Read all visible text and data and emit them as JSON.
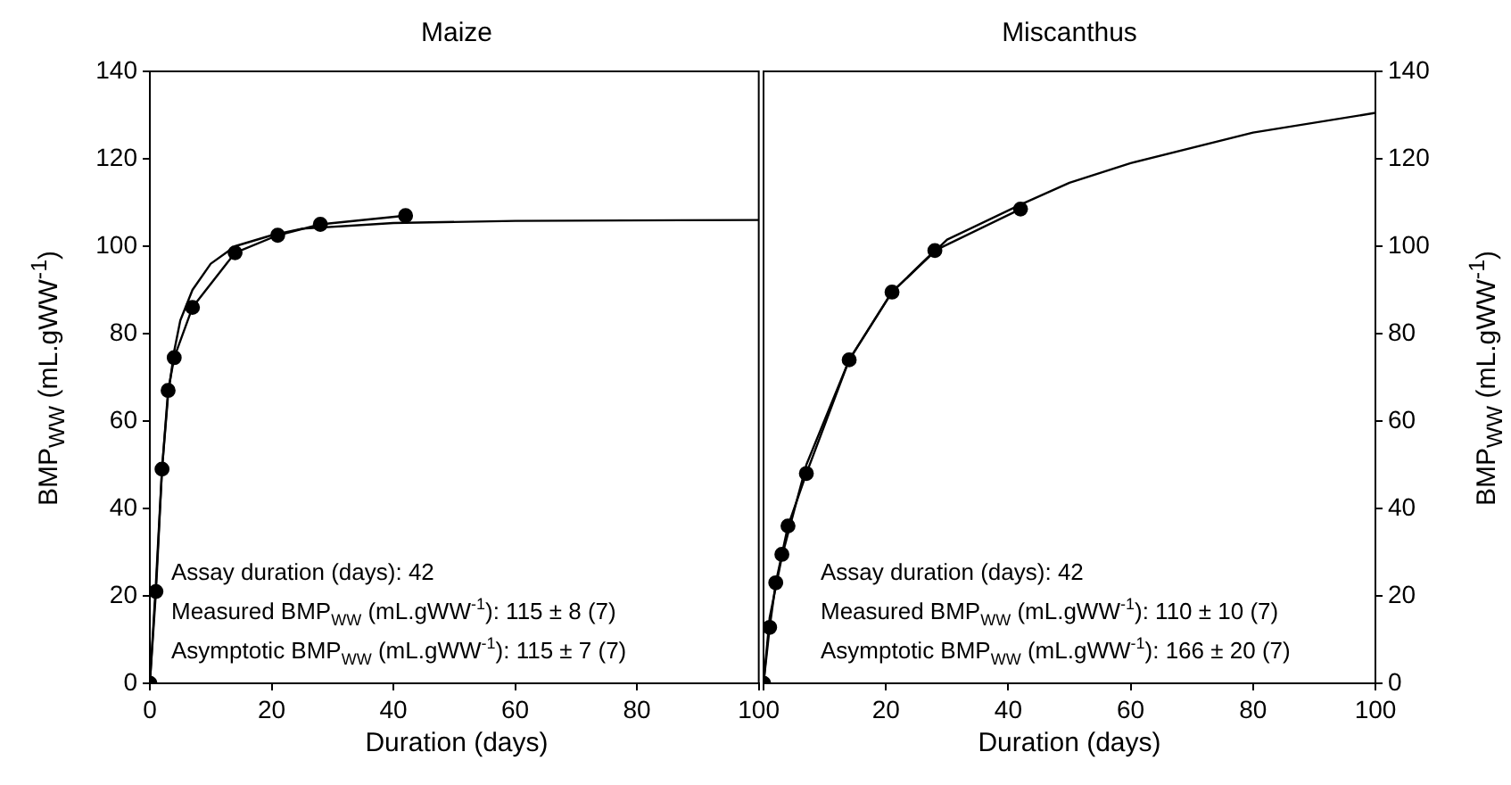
{
  "chart_data": [
    {
      "type": "line",
      "title": "Maize",
      "xlabel": "Duration (days)",
      "ylabel": "BMP$_{WW}$ (mL.gWW$^{-1}$)",
      "xlim": [
        0,
        100
      ],
      "xticks": [
        0,
        20,
        40,
        60,
        80,
        100
      ],
      "ylim": [
        0,
        140
      ],
      "yticks": [
        0,
        20,
        40,
        60,
        80,
        100,
        120,
        140
      ],
      "legend": false,
      "grid": false,
      "annotations": [
        "Assay duration (days): 42",
        "Measured BMP$_{WW}$ (mL.gWW$^{-1}$): 115 ± 8 (7)",
        "Asymptotic BMP$_{WW}$ (mL.gWW$^{-1}$): 115 ± 7 (7)"
      ],
      "series": [
        {
          "color": "#000000",
          "marker": "circle",
          "x": [
            0,
            1,
            2,
            3,
            4,
            7,
            14,
            21,
            28,
            42
          ],
          "values": [
            0,
            21,
            49,
            67,
            74.5,
            86,
            98.5,
            102.5,
            105,
            107
          ]
        },
        {
          "color": "#000000",
          "marker": "none",
          "x": [
            0,
            1,
            2,
            3,
            4,
            5,
            7,
            10,
            14,
            20,
            25,
            40,
            60,
            100
          ],
          "values": [
            0,
            23,
            49,
            66,
            76,
            83,
            90,
            96,
            100,
            102.5,
            104,
            105.3,
            105.8,
            106
          ]
        }
      ]
    },
    {
      "type": "line",
      "title": "Miscanthus",
      "xlabel": "Duration (days)",
      "y2label": "BMP$_{WW}$ (mL.gWW$^{-1}$)",
      "xlim": [
        0,
        100
      ],
      "xticks": [
        {
          "value": 0,
          "label": null
        },
        20,
        40,
        60,
        80,
        100
      ],
      "y2lim": [
        0,
        140
      ],
      "y2ticks": [
        0,
        20,
        40,
        60,
        80,
        100,
        120,
        140
      ],
      "legend": false,
      "grid": false,
      "annotations": [
        "Assay duration (days): 42",
        "Measured BMP$_{WW}$ (mL.gWW$^{-1}$): 110 ± 10 (7)",
        "Asymptotic BMP$_{WW}$ (mL.gWW$^{-1}$): 166 ± 20 (7)"
      ],
      "series": [
        {
          "color": "#000000",
          "marker": "circle",
          "axis": "y2",
          "x": [
            0,
            1,
            2,
            3,
            4,
            7,
            14,
            21,
            28,
            42
          ],
          "values": [
            0,
            12.8,
            23,
            29.5,
            36,
            48,
            74,
            89.5,
            99,
            108.5
          ]
        },
        {
          "color": "#000000",
          "marker": "none",
          "axis": "y2",
          "x": [
            0,
            1,
            3,
            7,
            14,
            21,
            30,
            42,
            50,
            60,
            80,
            100
          ],
          "values": [
            0,
            15,
            29,
            50,
            74,
            89.5,
            101.5,
            109.5,
            114.5,
            119,
            126,
            130.5
          ]
        }
      ]
    }
  ]
}
